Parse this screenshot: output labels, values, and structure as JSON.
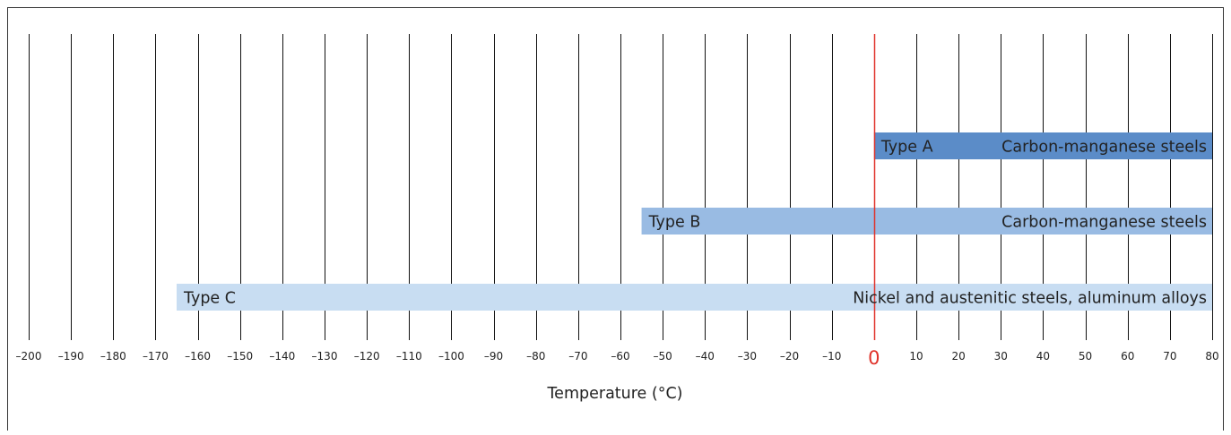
{
  "chart_data": {
    "type": "bar",
    "orientation": "horizontal-range",
    "xlabel": "Temperature (°C)",
    "xlim": [
      -200,
      80
    ],
    "x_ticks": [
      -200,
      -190,
      -180,
      -170,
      -160,
      -150,
      -140,
      -130,
      -120,
      -110,
      -100,
      -90,
      -80,
      -70,
      -60,
      -50,
      -40,
      -30,
      -20,
      -10,
      0,
      10,
      20,
      30,
      40,
      50,
      60,
      70,
      80
    ],
    "x_tick_labels": [
      "–200",
      "–190",
      "–180",
      "–170",
      "–160",
      "–150",
      "–140",
      "–130",
      "–120",
      "–110",
      "–100",
      "–90",
      "–80",
      "–70",
      "–60",
      "–50",
      "–40",
      "–30",
      "–20",
      "–10",
      "0",
      "10",
      "20",
      "30",
      "40",
      "50",
      "60",
      "70",
      "80"
    ],
    "grid": "vertical",
    "reference_line": {
      "x": 0,
      "color": "#e0332b"
    },
    "series": [
      {
        "name": "Type A",
        "description": "Carbon-manganese steels",
        "start": 0,
        "end": 80,
        "color": "#5b8cc8"
      },
      {
        "name": "Type B",
        "description": "Carbon-manganese steels",
        "start": -55,
        "end": 80,
        "color": "#99bbe3"
      },
      {
        "name": "Type C",
        "description": "Nickel and austenitic steels, aluminum alloys",
        "start": -165,
        "end": 80,
        "color": "#c8ddf2"
      }
    ]
  },
  "colors": {
    "frame": "#333333",
    "grid": "#111111",
    "text": "#222222"
  }
}
